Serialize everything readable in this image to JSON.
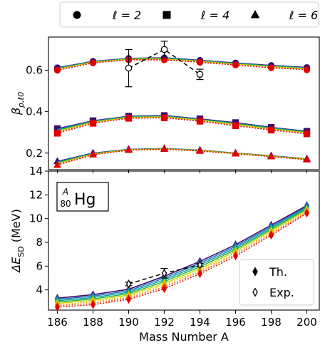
{
  "chart_data": {
    "type": "line",
    "legend": {
      "placement": "top",
      "entries": [
        {
          "marker": "circle",
          "label": "ℓ = 2"
        },
        {
          "marker": "square",
          "label": "ℓ = 4"
        },
        {
          "marker": "triangle",
          "label": "ℓ = 6"
        }
      ]
    },
    "x": [
      186,
      188,
      190,
      192,
      194,
      196,
      198,
      200
    ],
    "xlabel": "Mass Number A",
    "xticks": [
      "186",
      "188",
      "190",
      "192",
      "194",
      "196",
      "198",
      "200"
    ],
    "line_colors": [
      "#3b0f70",
      "#1f6fb4",
      "#00a0a0",
      "#22b14c",
      "#c8d400",
      "#f0b400",
      "#f07000",
      "#e00000"
    ],
    "panels": [
      {
        "id": "beta",
        "ylabel": "β_{p,ℓ0}",
        "ylim": [
          0.12,
          0.76
        ],
        "yticks": [
          "0.2",
          "0.4",
          "0.6"
        ],
        "ytick_values": [
          0.2,
          0.4,
          0.6
        ],
        "series": [
          {
            "group": "ℓ=2",
            "marker": "circle",
            "top": [
              0.612,
              0.643,
              0.657,
              0.66,
              0.648,
              0.635,
              0.623,
              0.613
            ],
            "bottom": [
              0.6,
              0.635,
              0.65,
              0.65,
              0.638,
              0.625,
              0.612,
              0.602
            ]
          },
          {
            "group": "ℓ=4",
            "marker": "square",
            "top": [
              0.318,
              0.356,
              0.378,
              0.381,
              0.365,
              0.347,
              0.324,
              0.305
            ],
            "bottom": [
              0.296,
              0.344,
              0.368,
              0.37,
              0.354,
              0.332,
              0.311,
              0.293
            ]
          },
          {
            "group": "ℓ=6",
            "marker": "triangle",
            "top": [
              0.16,
              0.2,
              0.218,
              0.222,
              0.214,
              0.2,
              0.187,
              0.172
            ],
            "bottom": [
              0.142,
              0.192,
              0.214,
              0.219,
              0.21,
              0.197,
              0.183,
              0.168
            ]
          }
        ],
        "experiment": {
          "x": [
            190,
            192,
            194
          ],
          "y": [
            0.61,
            0.7,
            0.58
          ],
          "err": [
            0.09,
            0.04,
            0.025
          ]
        }
      },
      {
        "id": "energy",
        "ylabel": "ΔE_SD (MeV)",
        "ylim": [
          2.3,
          14
        ],
        "yticks": [
          "4",
          "6",
          "8",
          "10",
          "12",
          "14"
        ],
        "ytick_values": [
          4,
          6,
          8,
          10,
          12,
          14
        ],
        "label_box": {
          "mass_number": "A",
          "atomic_number": "80",
          "element": "Hg"
        },
        "theory_top": [
          3.3,
          3.6,
          4.05,
          5.15,
          6.4,
          7.8,
          9.45,
          11.1
        ],
        "theory_bottom": [
          2.55,
          2.75,
          3.2,
          4.1,
          5.35,
          6.85,
          8.6,
          10.45
        ],
        "experiment": {
          "x": [
            190,
            192,
            194
          ],
          "y": [
            4.5,
            5.4,
            6.1
          ],
          "err": [
            0.15,
            0.4,
            0.12
          ]
        },
        "legend": {
          "placement": "lower-right",
          "entries": [
            {
              "marker": "filled-diamond",
              "label": "Th."
            },
            {
              "marker": "open-diamond",
              "label": "Exp."
            }
          ]
        }
      }
    ]
  }
}
